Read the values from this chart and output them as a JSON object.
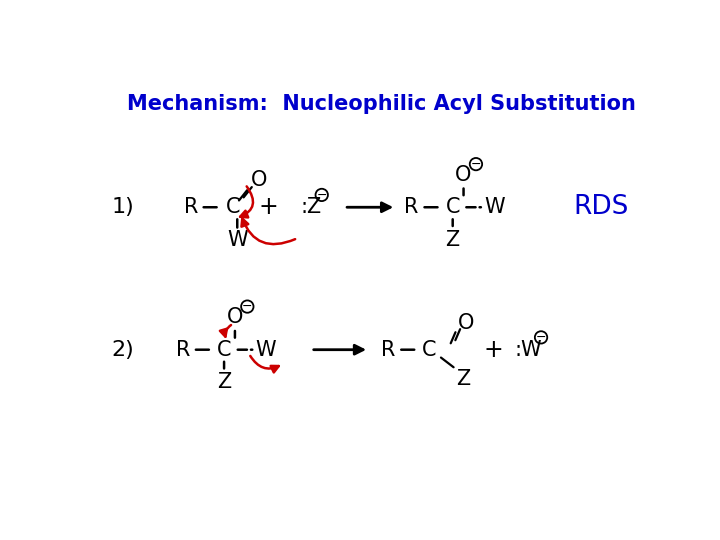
{
  "title": "Mechanism:  Nucleophilic Acyl Substitution",
  "title_color": "#0000CC",
  "title_fontsize": 15,
  "background_color": "#ffffff",
  "text_color": "#000000",
  "red_color": "#CC0000",
  "blue_color": "#0000CC",
  "label_1": "1)",
  "label_2": "2)",
  "rds_label": "RDS",
  "fs": 15
}
